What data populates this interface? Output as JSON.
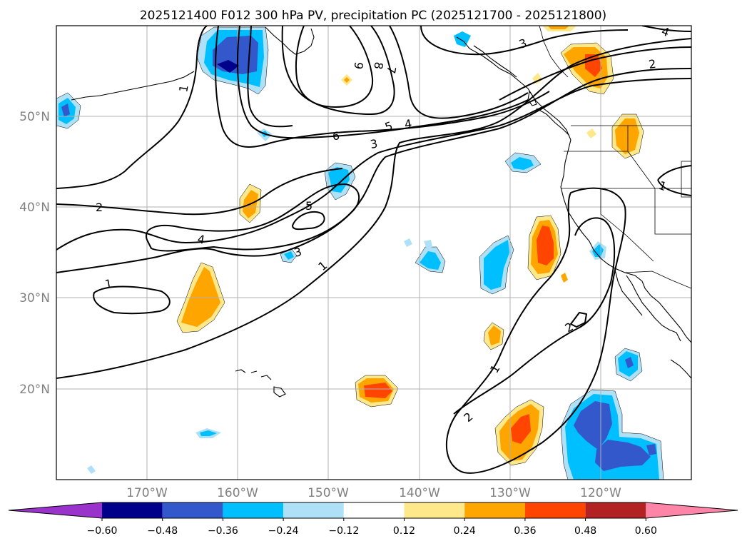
{
  "title": "2025121400 F012 300 hPa PV, precipitation PC (2025121700 - 2025121800)",
  "map": {
    "type": "filled contour map with PV contour lines",
    "region": "North Pacific and western North America",
    "lon_range": [
      -180,
      -110
    ],
    "lat_range": [
      10,
      60
    ]
  },
  "axes": {
    "lat_labels": [
      "50°N",
      "40°N",
      "30°N",
      "20°N"
    ],
    "lon_labels": [
      "170°W",
      "160°W",
      "150°W",
      "140°W",
      "130°W",
      "120°W"
    ]
  },
  "colorbar": {
    "ticks": [
      "−0.60",
      "−0.48",
      "−0.36",
      "−0.24",
      "−0.12",
      "0.12",
      "0.24",
      "0.36",
      "0.48",
      "0.60"
    ],
    "colors": [
      "#9933cc",
      "#00008b",
      "#3358cc",
      "#00bfff",
      "#aee0f7",
      "#ffffff",
      "#ffe88a",
      "#ffa500",
      "#ff4500",
      "#b22222",
      "#ff85a8"
    ],
    "extend": "both"
  },
  "contour_labels": [
    "1",
    "1",
    "1",
    "1",
    "1",
    "2",
    "2",
    "2",
    "2",
    "3",
    "3",
    "3",
    "4",
    "4",
    "4",
    "5",
    "5",
    "6",
    "7",
    "8",
    "9"
  ],
  "colors": {
    "contour": "#000000",
    "grid": "#b0b0b0",
    "label_gray": "#808080"
  }
}
